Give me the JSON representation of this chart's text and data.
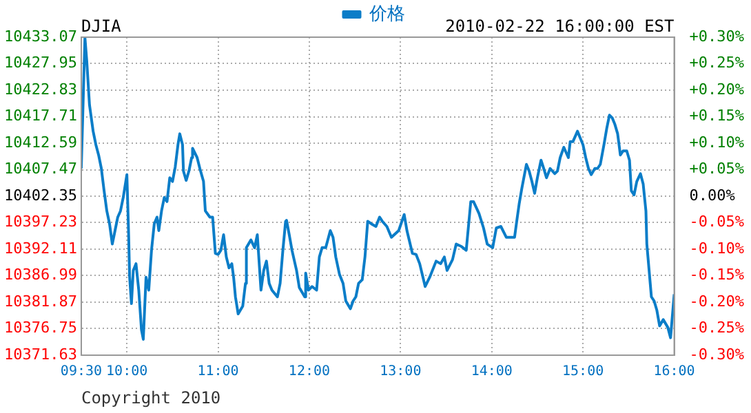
{
  "chart_data": {
    "type": "line",
    "title": "DJIA",
    "subtitle": "2010-02-22 16:00:00 EST",
    "annotations": [
      "Copyright 2010"
    ],
    "legend": "top",
    "grid": true,
    "marker": "none",
    "x": [
      9.5,
      9.54,
      9.56,
      9.59,
      9.63,
      9.66,
      9.69,
      9.72,
      9.75,
      9.78,
      9.81,
      9.84,
      9.87,
      9.9,
      9.93,
      9.96,
      10.0,
      10.02,
      10.03,
      10.05,
      10.07,
      10.1,
      10.13,
      10.16,
      10.18,
      10.21,
      10.24,
      10.27,
      10.3,
      10.33,
      10.35,
      10.38,
      10.41,
      10.44,
      10.47,
      10.5,
      10.53,
      10.56,
      10.58,
      10.61,
      10.62,
      10.65,
      10.68,
      10.71,
      10.72,
      10.77,
      10.8,
      10.84,
      10.86,
      10.91,
      10.94,
      10.97,
      11.0,
      11.03,
      11.06,
      11.09,
      11.12,
      11.15,
      11.17,
      11.19,
      11.22,
      11.27,
      11.3,
      11.31,
      11.36,
      11.4,
      11.43,
      11.47,
      11.5,
      11.53,
      11.56,
      11.59,
      11.65,
      11.68,
      11.71,
      11.74,
      11.75,
      11.78,
      11.81,
      11.86,
      11.89,
      11.95,
      11.96,
      11.99,
      12.03,
      12.08,
      12.11,
      12.14,
      12.18,
      12.23,
      12.26,
      12.29,
      12.33,
      12.37,
      12.4,
      12.45,
      12.48,
      12.51,
      12.54,
      12.58,
      12.61,
      12.64,
      12.68,
      12.73,
      12.77,
      12.8,
      12.85,
      12.9,
      12.98,
      13.04,
      13.07,
      13.13,
      13.17,
      13.21,
      13.27,
      13.32,
      13.39,
      13.44,
      13.48,
      13.51,
      13.57,
      13.61,
      13.67,
      13.72,
      13.77,
      13.8,
      13.86,
      13.91,
      13.95,
      14.01,
      14.05,
      14.1,
      14.16,
      14.25,
      14.28,
      14.3,
      14.33,
      14.38,
      14.41,
      14.44,
      14.47,
      14.5,
      14.54,
      14.57,
      14.6,
      14.64,
      14.69,
      14.72,
      14.75,
      14.79,
      14.84,
      14.86,
      14.89,
      14.94,
      14.97,
      15.0,
      15.03,
      15.06,
      15.09,
      15.13,
      15.16,
      15.19,
      15.23,
      15.26,
      15.29,
      15.32,
      15.35,
      15.38,
      15.41,
      15.44,
      15.48,
      15.51,
      15.53,
      15.56,
      15.59,
      15.63,
      15.66,
      15.69,
      15.7,
      15.75,
      15.78,
      15.81,
      15.84,
      15.88,
      15.93,
      15.96,
      16.0
    ],
    "series": [
      {
        "name": "价格",
        "color": "#0b7dc8",
        "values": [
          10407.7,
          10433.0,
          10428.5,
          10420.0,
          10414.9,
          10412.3,
          10410.3,
          10407.7,
          10403.4,
          10399.5,
          10397.0,
          10393.1,
          10395.7,
          10398.3,
          10399.5,
          10402.1,
          10406.5,
          10394.4,
          10386.7,
          10381.6,
          10388.0,
          10389.3,
          10384.2,
          10376.5,
          10374.7,
          10386.7,
          10384.2,
          10391.9,
          10397.0,
          10398.3,
          10395.7,
          10399.5,
          10402.1,
          10401.3,
          10405.9,
          10405.2,
          10408.0,
          10412.3,
          10414.4,
          10412.3,
          10407.2,
          10405.4,
          10407.2,
          10409.8,
          10411.6,
          10409.8,
          10407.7,
          10405.2,
          10399.5,
          10398.3,
          10398.3,
          10391.3,
          10391.1,
          10391.9,
          10394.9,
          10390.6,
          10388.5,
          10389.3,
          10386.7,
          10382.9,
          10379.6,
          10381.1,
          10385.5,
          10392.4,
          10393.9,
          10392.4,
          10394.9,
          10384.2,
          10388.0,
          10389.8,
          10385.5,
          10384.2,
          10382.9,
          10385.5,
          10391.9,
          10397.5,
          10397.7,
          10394.9,
          10391.9,
          10388.0,
          10384.7,
          10382.9,
          10387.5,
          10384.2,
          10384.9,
          10384.2,
          10390.6,
          10392.4,
          10392.4,
          10395.7,
          10394.4,
          10390.6,
          10387.3,
          10385.5,
          10382.1,
          10380.6,
          10382.1,
          10382.9,
          10385.5,
          10386.2,
          10390.6,
          10397.5,
          10397.0,
          10396.5,
          10398.3,
          10397.5,
          10396.5,
          10394.4,
          10395.7,
          10398.8,
          10395.7,
          10391.3,
          10391.1,
          10389.3,
          10384.9,
          10386.7,
          10389.8,
          10389.3,
          10390.6,
          10388.0,
          10390.1,
          10393.1,
          10392.6,
          10391.9,
          10401.3,
          10401.3,
          10399.0,
          10396.2,
          10393.1,
          10392.4,
          10396.2,
          10396.5,
          10394.4,
          10394.4,
          10398.3,
          10400.8,
          10403.9,
          10408.5,
          10407.2,
          10405.2,
          10402.9,
          10405.9,
          10409.3,
          10407.7,
          10405.9,
          10407.7,
          10406.7,
          10407.2,
          10409.8,
          10411.8,
          10409.8,
          10412.9,
          10412.9,
          10414.9,
          10413.6,
          10412.3,
          10409.8,
          10407.7,
          10406.5,
          10407.7,
          10407.7,
          10408.5,
          10412.3,
          10415.4,
          10418.0,
          10417.5,
          10416.2,
          10414.4,
          10410.3,
          10411.1,
          10411.1,
          10409.3,
          10403.4,
          10402.6,
          10405.2,
          10406.7,
          10404.7,
          10399.5,
          10393.1,
          10382.9,
          10382.1,
          10380.3,
          10377.3,
          10378.5,
          10377.0,
          10375.0,
          10383.4
        ]
      }
    ],
    "xlim": [
      9.5,
      16
    ],
    "xticks": [
      {
        "value": 9.5,
        "label": "09:30"
      },
      {
        "value": 10,
        "label": "10:00"
      },
      {
        "value": 11,
        "label": "11:00"
      },
      {
        "value": 12,
        "label": "12:00"
      },
      {
        "value": 13,
        "label": "13:00"
      },
      {
        "value": 14,
        "label": "14:00"
      },
      {
        "value": 15,
        "label": "15:00"
      },
      {
        "value": 16,
        "label": "16:00"
      }
    ],
    "ylim": [
      10371.63,
      10433.07
    ],
    "yticks": [
      10371.63,
      10376.75,
      10381.87,
      10386.99,
      10392.11,
      10397.23,
      10402.35,
      10407.47,
      10412.59,
      10417.71,
      10422.83,
      10427.95,
      10433.07
    ],
    "y2lim": [
      -0.2953,
      0.2953
    ],
    "y2ticks": [
      {
        "value": -0.2953,
        "label": "-0.30%"
      },
      {
        "value": -0.2461,
        "label": "-0.25%"
      },
      {
        "value": -0.1969,
        "label": "-0.20%"
      },
      {
        "value": -0.1477,
        "label": "-0.15%"
      },
      {
        "value": -0.0984,
        "label": "-0.10%"
      },
      {
        "value": -0.0492,
        "label": "-0.05%"
      },
      {
        "value": 0,
        "label": "0.00%"
      },
      {
        "value": 0.0492,
        "label": "+0.05%"
      },
      {
        "value": 0.0984,
        "label": "+0.10%"
      },
      {
        "value": 0.1477,
        "label": "+0.15%"
      },
      {
        "value": 0.1969,
        "label": "+0.20%"
      },
      {
        "value": 0.2461,
        "label": "+0.25%"
      },
      {
        "value": 0.2953,
        "label": "+0.30%"
      }
    ]
  }
}
